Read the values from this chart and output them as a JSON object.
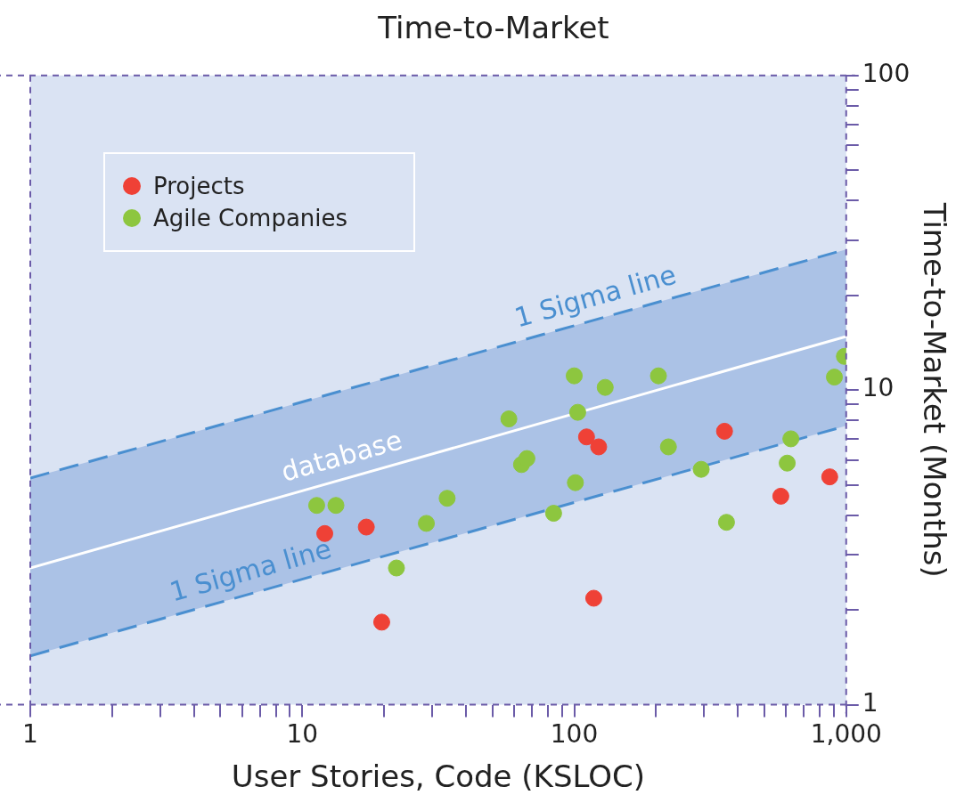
{
  "chart_data": {
    "type": "scatter",
    "title": "Time-to-Market",
    "xlabel": "User Stories, Code (KSLOC)",
    "ylabel": "Time-to-Market (Months)",
    "log": "xy",
    "grid": false,
    "legend": "top left",
    "marker": "circle",
    "xlim": [
      1,
      1000
    ],
    "ylim": [
      1,
      100
    ],
    "xticks": [
      1,
      {
        "value": 2,
        "label": null
      },
      {
        "value": 3,
        "label": null
      },
      {
        "value": 4,
        "label": null
      },
      {
        "value": 5,
        "label": null
      },
      {
        "value": 6,
        "label": null
      },
      {
        "value": 7,
        "label": null
      },
      {
        "value": 8,
        "label": null
      },
      {
        "value": 9,
        "label": null
      },
      10,
      {
        "value": 20,
        "label": null
      },
      {
        "value": 30,
        "label": null
      },
      {
        "value": 40,
        "label": null
      },
      {
        "value": 50,
        "label": null
      },
      {
        "value": 60,
        "label": null
      },
      {
        "value": 70,
        "label": null
      },
      {
        "value": 80,
        "label": null
      },
      {
        "value": 90,
        "label": null
      },
      100,
      {
        "value": 200,
        "label": null
      },
      {
        "value": 300,
        "label": null
      },
      {
        "value": 400,
        "label": null
      },
      {
        "value": 500,
        "label": null
      },
      {
        "value": 600,
        "label": null
      },
      {
        "value": 700,
        "label": null
      },
      {
        "value": 800,
        "label": null
      },
      {
        "value": 900,
        "label": null
      },
      {
        "value": 1000,
        "label": "1,000"
      }
    ],
    "yticks": [
      1,
      {
        "value": 2,
        "label": null
      },
      {
        "value": 3,
        "label": null
      },
      {
        "value": 4,
        "label": null
      },
      {
        "value": 5,
        "label": null
      },
      {
        "value": 6,
        "label": null
      },
      {
        "value": 7,
        "label": null
      },
      {
        "value": 8,
        "label": null
      },
      {
        "value": 9,
        "label": null
      },
      10,
      {
        "value": 20,
        "label": null
      },
      {
        "value": 30,
        "label": null
      },
      {
        "value": 40,
        "label": null
      },
      {
        "value": 50,
        "label": null
      },
      {
        "value": 60,
        "label": null
      },
      {
        "value": 70,
        "label": null
      },
      {
        "value": 80,
        "label": null
      },
      {
        "value": 90,
        "label": null
      },
      100
    ],
    "series": [
      {
        "type": "line",
        "color": "#4a8fd0",
        "line_style": "dashed",
        "marker": "none",
        "x": [
          1,
          1000
        ],
        "values": [
          5.25,
          28
        ]
      },
      {
        "type": "line",
        "color": "#4a8fd0",
        "line_style": "dashed",
        "marker": "none",
        "x": [
          1,
          1000
        ],
        "values": [
          1.43,
          7.7
        ]
      },
      {
        "type": "line",
        "color": "#ffffff",
        "line_style": "solid",
        "marker": "none",
        "x": [
          1,
          1000
        ],
        "values": [
          2.72,
          14.8
        ],
        "lower": [
          1.43,
          7.7
        ],
        "upper": [
          5.25,
          28
        ]
      },
      {
        "name": "Projects",
        "color": "#ef4136",
        "x": [
          12.1,
          17.2,
          19.6,
          111,
          123,
          118,
          357,
          575,
          870
        ],
        "values": [
          3.5,
          3.67,
          1.83,
          7.1,
          6.6,
          2.18,
          7.4,
          4.6,
          5.3
        ]
      },
      {
        "name": "Agile Companies",
        "color": "#8dc63f",
        "x": [
          11.3,
          13.3,
          22.2,
          28.6,
          34.1,
          57.5,
          64,
          67,
          84,
          100,
          103,
          101,
          130,
          204,
          222,
          293,
          363,
          607,
          626,
          905,
          985
        ],
        "values": [
          4.3,
          4.3,
          2.72,
          3.77,
          4.53,
          8.1,
          5.8,
          6.06,
          4.06,
          11.1,
          8.5,
          5.08,
          10.2,
          11.1,
          6.6,
          5.6,
          3.8,
          5.86,
          7.0,
          11.0,
          12.8
        ]
      }
    ],
    "annotations": [
      {
        "text": "database",
        "x": 14.7,
        "y": 5.26
      },
      {
        "text": "1 Sigma line",
        "x": 126,
        "y": 16.95
      },
      {
        "text": "1 Sigma line",
        "x": 6.8,
        "y": 2.28
      }
    ]
  }
}
